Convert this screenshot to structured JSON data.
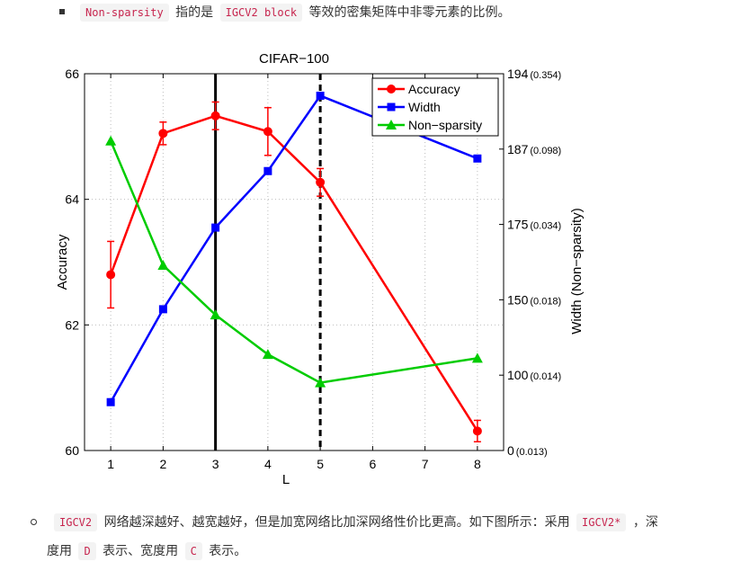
{
  "text_top": {
    "code1": "Non-sparsity",
    "t1": "指的是",
    "code2": "IGCV2 block",
    "t2": "等效的密集矩阵中非零元素的比例。"
  },
  "text_bottom": {
    "code1": "IGCV2",
    "t1": "网络越深越好、越宽越好，但是加宽网络比加深网络性价比更高。如下图所示：采用",
    "code2": "IGCV2*",
    "t2": "，深",
    "t3": "度用",
    "code3": "D",
    "t4": "表示、宽度用",
    "code4": "C",
    "t5": "表示。"
  },
  "chart_data": {
    "type": "line",
    "title": "CIFAR−100",
    "xlabel": "L",
    "ylabel": "Accuracy",
    "y2label": "Width (Non−sparsity)",
    "x_ticks": [
      "1",
      "2",
      "3",
      "4",
      "5",
      "6",
      "7",
      "8"
    ],
    "xlim": [
      0.5,
      8.5
    ],
    "ylim": [
      60,
      66
    ],
    "y_ticks": [
      "60",
      "62",
      "64",
      "66"
    ],
    "y2_ticks": [
      {
        "main": "0",
        "sub": "(0.013)"
      },
      {
        "main": "100",
        "sub": "(0.014)"
      },
      {
        "main": "150",
        "sub": "(0.018)"
      },
      {
        "main": "175",
        "sub": "(0.034)"
      },
      {
        "main": "187",
        "sub": "(0.098)"
      },
      {
        "main": "194",
        "sub": "(0.354)"
      }
    ],
    "grid": true,
    "legend_position": "top-right",
    "series": [
      {
        "name": "Accuracy",
        "color": "#ff0000",
        "marker": "circle",
        "x": [
          1,
          2,
          3,
          4,
          5,
          8
        ],
        "y": [
          62.8,
          65.05,
          65.33,
          65.08,
          64.27,
          60.31
        ],
        "err": [
          0.53,
          0.18,
          0.22,
          0.38,
          0.22,
          0.17
        ]
      },
      {
        "name": "Width",
        "color": "#0000ff",
        "marker": "square",
        "x": [
          1,
          2,
          3,
          4,
          5,
          8
        ],
        "y": [
          60.77,
          62.25,
          63.55,
          64.45,
          65.65,
          64.65
        ]
      },
      {
        "name": "Non−sparsity",
        "color": "#00cc00",
        "marker": "triangle",
        "x": [
          1,
          2,
          3,
          4,
          5,
          8
        ],
        "y": [
          64.93,
          62.95,
          62.16,
          61.53,
          61.08,
          61.47
        ]
      }
    ],
    "vlines": [
      {
        "x": 3,
        "style": "solid"
      },
      {
        "x": 5,
        "style": "dashed"
      }
    ]
  }
}
